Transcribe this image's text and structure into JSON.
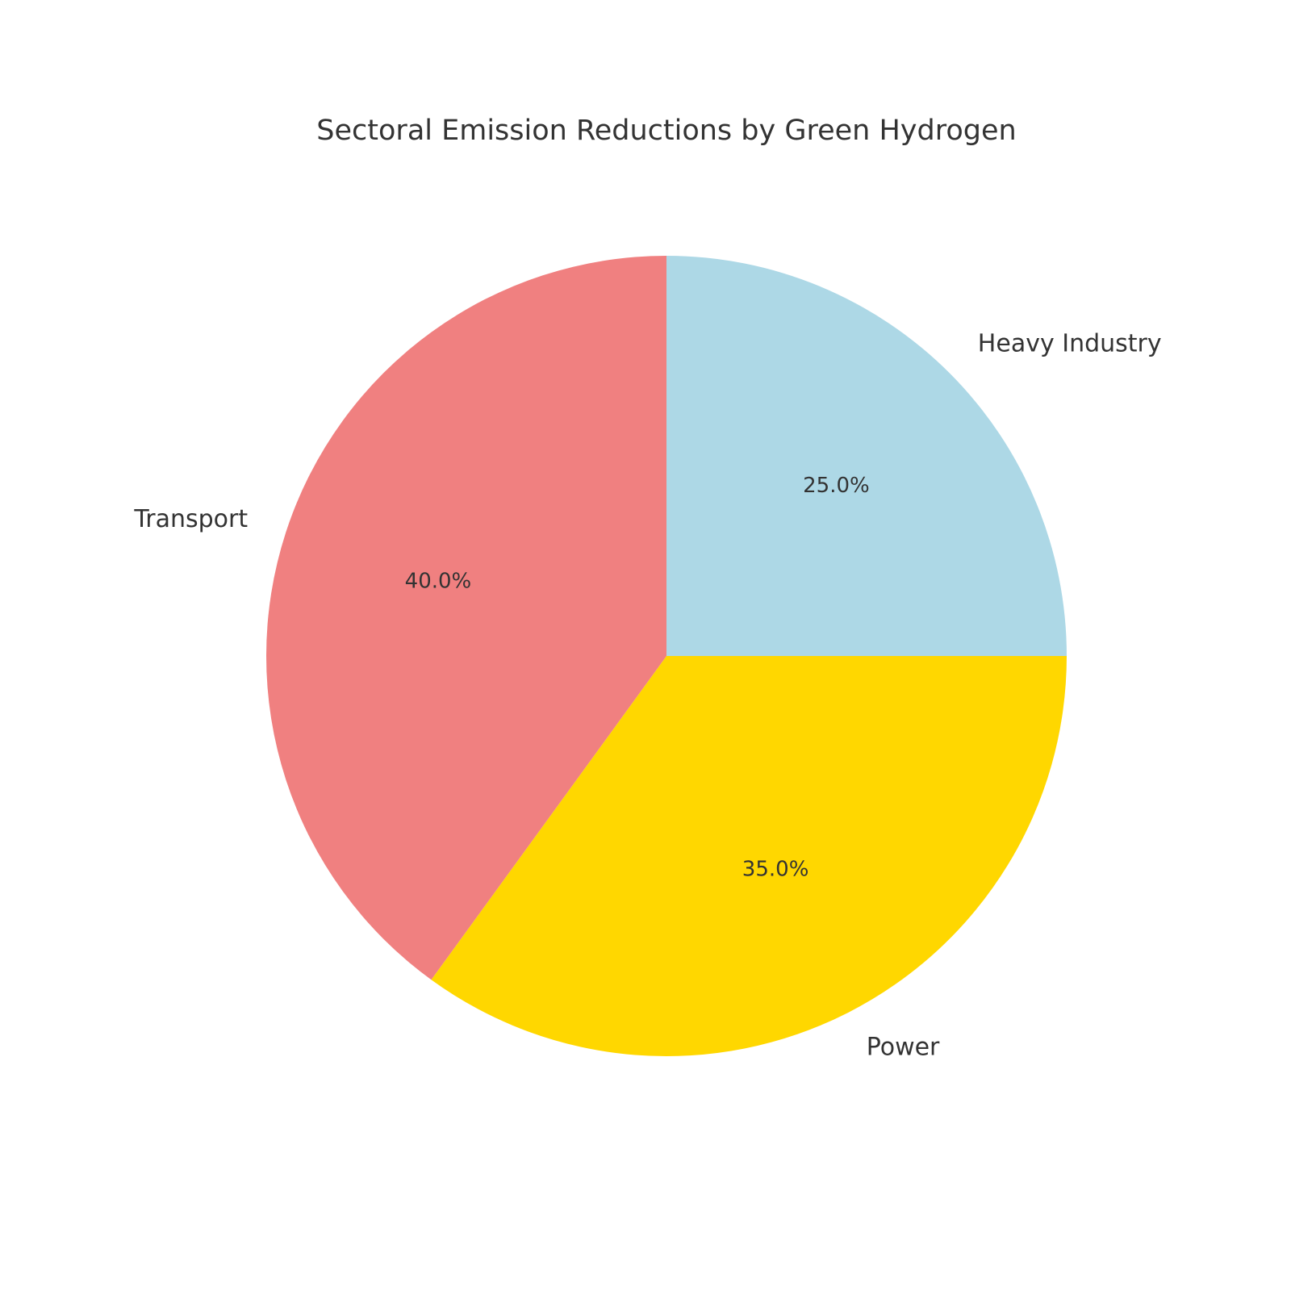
{
  "chart_data": {
    "type": "pie",
    "title": "Sectoral Emission Reductions by Green Hydrogen",
    "categories": [
      "Heavy Industry",
      "Power",
      "Transport"
    ],
    "values": [
      25,
      35,
      40
    ],
    "value_labels": [
      "25.0%",
      "35.0%",
      "40.0%"
    ],
    "colors": [
      "#add8e6",
      "#ffd700",
      "#f08080"
    ],
    "start_angle": 90,
    "direction": "clockwise"
  }
}
